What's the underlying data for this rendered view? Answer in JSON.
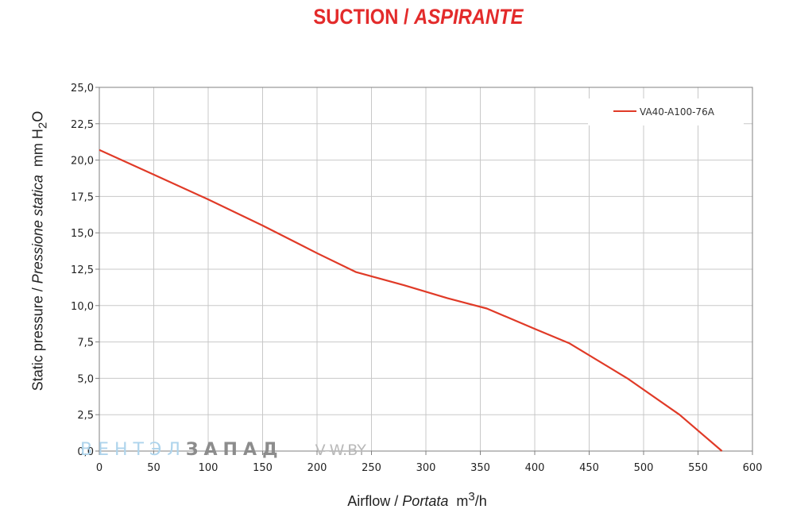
{
  "title": {
    "main": "SUCTION",
    "separator": " / ",
    "italic": "ASPIRANTE",
    "color": "#e32b2b"
  },
  "watermark": {
    "part1": "ВЕНТЭЛ",
    "part2": "ЗАПАД",
    "part3": "V-W.BY"
  },
  "chart_data": {
    "type": "line",
    "ylabel": {
      "regular": "Static pressure",
      "sep": " / ",
      "italic": "Pressione statica",
      "unit": "mm H",
      "unit_sub": "2",
      "unit_end": "O"
    },
    "xlabel": {
      "regular": "Airflow",
      "sep": " / ",
      "italic": "Portata",
      "unit": "m",
      "unit_sup": "3",
      "unit_end": "/h"
    },
    "xlim": [
      0,
      600
    ],
    "ylim": [
      0,
      25
    ],
    "x_ticks": [
      "0",
      "50",
      "100",
      "150",
      "200",
      "250",
      "300",
      "350",
      "400",
      "450",
      "500",
      "550",
      "600"
    ],
    "y_ticks": [
      "0,0",
      "2,5",
      "5,0",
      "7,5",
      "10,0",
      "12,5",
      "15,0",
      "17,5",
      "20,0",
      "22,5",
      "25,0"
    ],
    "x_tick_values": [
      0,
      50,
      100,
      150,
      200,
      250,
      300,
      350,
      400,
      450,
      500,
      550,
      600
    ],
    "y_tick_values": [
      0,
      2.5,
      5,
      7.5,
      10,
      12.5,
      15,
      17.5,
      20,
      22.5,
      25
    ],
    "grid": true,
    "legend_position": "top-right",
    "series": [
      {
        "name": "VA40-A100-76A",
        "color": "#e03a27",
        "x": [
          0,
          50,
          100,
          150,
          200,
          236,
          280,
          320,
          356,
          400,
          432,
          485,
          533,
          572
        ],
        "y": [
          20.7,
          19.0,
          17.3,
          15.5,
          13.6,
          12.3,
          11.4,
          10.5,
          9.8,
          8.4,
          7.4,
          5.0,
          2.5,
          0.0
        ]
      }
    ]
  }
}
